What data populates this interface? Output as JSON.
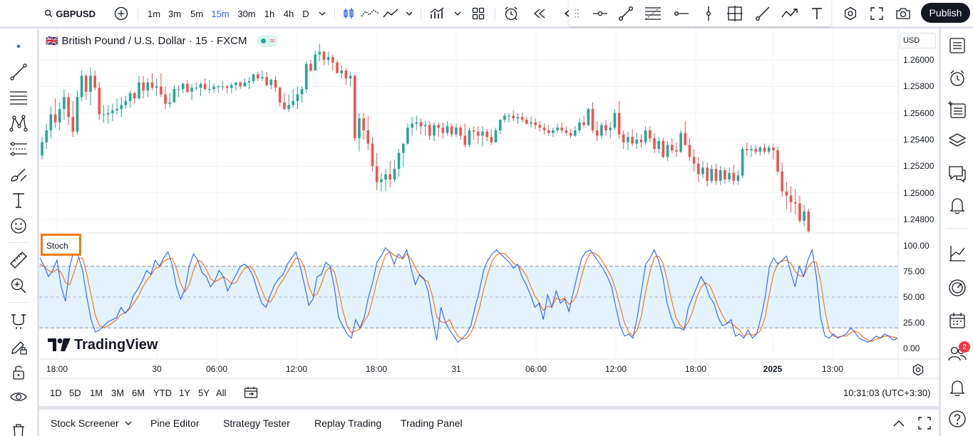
{
  "topbar": {
    "symbol": "GBPUSD",
    "intervals": [
      "1m",
      "3m",
      "5m",
      "15m",
      "30m",
      "1h",
      "4h",
      "D"
    ],
    "active_interval": "15m",
    "publish_label": "Publish"
  },
  "legend": {
    "title": "British Pound / U.S. Dollar · 15 · FXCM",
    "flag": "🇬🇧",
    "badge": "≈"
  },
  "currency_button": "USD",
  "indicator": {
    "label": "Stoch"
  },
  "watermark": "TradingView",
  "price_axis": [
    "1.26000",
    "1.25800",
    "1.25600",
    "1.25400",
    "1.25200",
    "1.25000",
    "1.24800"
  ],
  "stoch_axis": [
    "100.00",
    "75.00",
    "50.00",
    "25.00",
    "0.00"
  ],
  "time_axis": [
    {
      "label": "18:00",
      "bold": false
    },
    {
      "label": "30",
      "bold": false
    },
    {
      "label": "06:00",
      "bold": false
    },
    {
      "label": "12:00",
      "bold": false
    },
    {
      "label": "18:00",
      "bold": false
    },
    {
      "label": "31",
      "bold": false
    },
    {
      "label": "06:00",
      "bold": false
    },
    {
      "label": "12:00",
      "bold": false
    },
    {
      "label": "18:00",
      "bold": false
    },
    {
      "label": "2025",
      "bold": true
    },
    {
      "label": "13:00",
      "bold": false
    }
  ],
  "ranges": [
    "1D",
    "5D",
    "1M",
    "3M",
    "6M",
    "YTD",
    "1Y",
    "5Y",
    "All"
  ],
  "clock": "10:31:03 (UTC+3:30)",
  "bottom_tabs": [
    "Stock Screener",
    "Pine Editor",
    "Strategy Tester",
    "Replay Trading",
    "Trading Panel"
  ],
  "notification_count": "2",
  "colors": {
    "up": "#26a69a",
    "down": "#ef5350",
    "stoch_k": "#2962ff",
    "stoch_d": "#ff6d00",
    "band": "#e3f2fd",
    "highlight": "#f57c00"
  },
  "chart_data": {
    "type": "candlestick",
    "price_range": [
      1.247,
      1.2613
    ],
    "candles": [
      [
        1.2528,
        1.2542,
        1.2525,
        1.2538
      ],
      [
        1.2538,
        1.2552,
        1.2533,
        1.2547
      ],
      [
        1.2547,
        1.2565,
        1.2541,
        1.2559
      ],
      [
        1.2559,
        1.2571,
        1.2549,
        1.2553
      ],
      [
        1.2553,
        1.2568,
        1.2547,
        1.2563
      ],
      [
        1.2563,
        1.2578,
        1.2555,
        1.2572
      ],
      [
        1.2572,
        1.2575,
        1.2551,
        1.2557
      ],
      [
        1.2557,
        1.2569,
        1.2542,
        1.2546
      ],
      [
        1.2546,
        1.2577,
        1.2544,
        1.2572
      ],
      [
        1.2572,
        1.2592,
        1.2569,
        1.2588
      ],
      [
        1.2588,
        1.2589,
        1.257,
        1.2576
      ],
      [
        1.2576,
        1.2594,
        1.2566,
        1.2588
      ],
      [
        1.2588,
        1.2592,
        1.2577,
        1.2579
      ],
      [
        1.2579,
        1.2583,
        1.2555,
        1.2559
      ],
      [
        1.2559,
        1.2566,
        1.2553,
        1.2559
      ],
      [
        1.2559,
        1.2566,
        1.2552,
        1.256
      ],
      [
        1.256,
        1.2567,
        1.2554,
        1.2562
      ],
      [
        1.2562,
        1.2571,
        1.2559,
        1.2563
      ],
      [
        1.2563,
        1.2572,
        1.2557,
        1.2566
      ],
      [
        1.2566,
        1.2573,
        1.2563,
        1.2569
      ],
      [
        1.2569,
        1.2577,
        1.2564,
        1.2575
      ],
      [
        1.2575,
        1.2576,
        1.2567,
        1.2571
      ],
      [
        1.2571,
        1.2588,
        1.257,
        1.2583
      ],
      [
        1.2583,
        1.2588,
        1.2571,
        1.2577
      ],
      [
        1.2577,
        1.2586,
        1.2572,
        1.2583
      ],
      [
        1.2583,
        1.259,
        1.2577,
        1.2579
      ],
      [
        1.2579,
        1.2586,
        1.2573,
        1.258
      ],
      [
        1.258,
        1.259,
        1.2572,
        1.2574
      ],
      [
        1.2574,
        1.258,
        1.2563,
        1.2567
      ],
      [
        1.2567,
        1.2575,
        1.2564,
        1.2568
      ],
      [
        1.2568,
        1.2581,
        1.2568,
        1.2578
      ],
      [
        1.2578,
        1.2581,
        1.2572,
        1.2578
      ],
      [
        1.2578,
        1.2583,
        1.2575,
        1.2582
      ],
      [
        1.2582,
        1.2585,
        1.2575,
        1.2576
      ],
      [
        1.2576,
        1.2582,
        1.257,
        1.2579
      ],
      [
        1.2579,
        1.2583,
        1.2577,
        1.2579
      ],
      [
        1.2579,
        1.2583,
        1.2573,
        1.2582
      ],
      [
        1.2582,
        1.2586,
        1.2577,
        1.2578
      ],
      [
        1.2578,
        1.2585,
        1.2575,
        1.2578
      ],
      [
        1.2578,
        1.2582,
        1.2575,
        1.258
      ],
      [
        1.258,
        1.2581,
        1.2575,
        1.258
      ],
      [
        1.258,
        1.2584,
        1.2577,
        1.258
      ],
      [
        1.258,
        1.2581,
        1.2575,
        1.2579
      ],
      [
        1.2579,
        1.2583,
        1.2575,
        1.2581
      ],
      [
        1.2581,
        1.2583,
        1.2577,
        1.2583
      ],
      [
        1.2583,
        1.2584,
        1.2578,
        1.258
      ],
      [
        1.258,
        1.2586,
        1.258,
        1.2583
      ],
      [
        1.2583,
        1.2587,
        1.2578,
        1.2584
      ],
      [
        1.2584,
        1.259,
        1.2582,
        1.2589
      ],
      [
        1.2589,
        1.2591,
        1.2584,
        1.2586
      ],
      [
        1.2586,
        1.2592,
        1.2584,
        1.2587
      ],
      [
        1.2587,
        1.2591,
        1.258,
        1.2581
      ],
      [
        1.2581,
        1.2586,
        1.2578,
        1.2585
      ],
      [
        1.2585,
        1.2588,
        1.2576,
        1.2579
      ],
      [
        1.2579,
        1.258,
        1.2565,
        1.2568
      ],
      [
        1.2568,
        1.2575,
        1.2562,
        1.2563
      ],
      [
        1.2563,
        1.2574,
        1.2561,
        1.2566
      ],
      [
        1.2566,
        1.2578,
        1.2564,
        1.2569
      ],
      [
        1.2569,
        1.258,
        1.2563,
        1.2574
      ],
      [
        1.2574,
        1.258,
        1.2568,
        1.2578
      ],
      [
        1.2578,
        1.2599,
        1.2575,
        1.2597
      ],
      [
        1.2597,
        1.26,
        1.2591,
        1.2592
      ],
      [
        1.2592,
        1.2607,
        1.2592,
        1.2604
      ],
      [
        1.2604,
        1.2612,
        1.2599,
        1.2606
      ],
      [
        1.2606,
        1.2607,
        1.2596,
        1.26
      ],
      [
        1.26,
        1.2606,
        1.2596,
        1.2602
      ],
      [
        1.2602,
        1.2604,
        1.2592,
        1.2598
      ],
      [
        1.2598,
        1.26,
        1.259,
        1.259
      ],
      [
        1.259,
        1.2596,
        1.2586,
        1.2592
      ],
      [
        1.2592,
        1.2594,
        1.2581,
        1.2586
      ],
      [
        1.2586,
        1.2591,
        1.258,
        1.2588
      ],
      [
        1.2588,
        1.2589,
        1.2539,
        1.2541
      ],
      [
        1.2541,
        1.256,
        1.2531,
        1.2556
      ],
      [
        1.2556,
        1.256,
        1.254,
        1.2547
      ],
      [
        1.2547,
        1.2558,
        1.2532,
        1.2537
      ],
      [
        1.2537,
        1.2542,
        1.2516,
        1.252
      ],
      [
        1.252,
        1.253,
        1.2502,
        1.2508
      ],
      [
        1.2508,
        1.2515,
        1.2501,
        1.251
      ],
      [
        1.251,
        1.2518,
        1.2501,
        1.2514
      ],
      [
        1.2514,
        1.2524,
        1.2504,
        1.251
      ],
      [
        1.251,
        1.2525,
        1.2508,
        1.2518
      ],
      [
        1.2518,
        1.2533,
        1.2512,
        1.253
      ],
      [
        1.253,
        1.2537,
        1.252,
        1.2537
      ],
      [
        1.2537,
        1.2552,
        1.2536,
        1.2549
      ],
      [
        1.2549,
        1.2557,
        1.2543,
        1.2552
      ],
      [
        1.2552,
        1.2558,
        1.2547,
        1.2553
      ],
      [
        1.2553,
        1.2556,
        1.2544,
        1.255
      ],
      [
        1.255,
        1.2554,
        1.2543,
        1.2551
      ],
      [
        1.2551,
        1.2554,
        1.254,
        1.2543
      ],
      [
        1.2543,
        1.2553,
        1.2539,
        1.2551
      ],
      [
        1.2551,
        1.2553,
        1.2542,
        1.2549
      ],
      [
        1.2549,
        1.2553,
        1.2541,
        1.2545
      ],
      [
        1.2545,
        1.2554,
        1.2543,
        1.255
      ],
      [
        1.255,
        1.2552,
        1.2542,
        1.2544
      ],
      [
        1.2544,
        1.2552,
        1.2542,
        1.2549
      ],
      [
        1.2549,
        1.2551,
        1.254,
        1.2543
      ],
      [
        1.2543,
        1.2552,
        1.2534,
        1.2536
      ],
      [
        1.2536,
        1.2549,
        1.2534,
        1.2547
      ],
      [
        1.2547,
        1.255,
        1.254,
        1.2546
      ],
      [
        1.2546,
        1.255,
        1.2537,
        1.2543
      ],
      [
        1.2543,
        1.255,
        1.2535,
        1.2546
      ],
      [
        1.2546,
        1.2548,
        1.2539,
        1.2542
      ],
      [
        1.2542,
        1.2548,
        1.2536,
        1.2538
      ],
      [
        1.2538,
        1.2549,
        1.2538,
        1.2547
      ],
      [
        1.2547,
        1.2555,
        1.2544,
        1.2555
      ],
      [
        1.2555,
        1.256,
        1.2553,
        1.2558
      ],
      [
        1.2558,
        1.256,
        1.2553,
        1.2558
      ],
      [
        1.2558,
        1.2562,
        1.2554,
        1.2556
      ],
      [
        1.2556,
        1.256,
        1.2552,
        1.2557
      ],
      [
        1.2557,
        1.256,
        1.2553,
        1.2555
      ],
      [
        1.2555,
        1.2557,
        1.2551,
        1.2552
      ],
      [
        1.2552,
        1.2557,
        1.2549,
        1.2553
      ],
      [
        1.2553,
        1.2556,
        1.2548,
        1.2551
      ],
      [
        1.2551,
        1.2554,
        1.2546,
        1.2549
      ],
      [
        1.2549,
        1.2552,
        1.2544,
        1.2547
      ],
      [
        1.2547,
        1.2551,
        1.2543,
        1.2545
      ],
      [
        1.2545,
        1.2549,
        1.2542,
        1.2547
      ],
      [
        1.2547,
        1.2552,
        1.2545,
        1.2549
      ],
      [
        1.2549,
        1.2553,
        1.2545,
        1.2547
      ],
      [
        1.2547,
        1.255,
        1.2543,
        1.2545
      ],
      [
        1.2545,
        1.2548,
        1.2541,
        1.2543
      ],
      [
        1.2543,
        1.255,
        1.2542,
        1.2547
      ],
      [
        1.2547,
        1.2556,
        1.2545,
        1.2553
      ],
      [
        1.2553,
        1.2558,
        1.2549,
        1.2551
      ],
      [
        1.2551,
        1.2564,
        1.255,
        1.2563
      ],
      [
        1.2563,
        1.2568,
        1.2545,
        1.2547
      ],
      [
        1.2547,
        1.2554,
        1.2539,
        1.2543
      ],
      [
        1.2543,
        1.2553,
        1.2541,
        1.2551
      ],
      [
        1.2551,
        1.2555,
        1.2543,
        1.2547
      ],
      [
        1.2547,
        1.2553,
        1.2541,
        1.2549
      ],
      [
        1.2549,
        1.2563,
        1.2547,
        1.256
      ],
      [
        1.256,
        1.2569,
        1.2541,
        1.2544
      ],
      [
        1.2544,
        1.2547,
        1.2533,
        1.2538
      ],
      [
        1.2538,
        1.2546,
        1.2532,
        1.2542
      ],
      [
        1.2542,
        1.2548,
        1.2535,
        1.2537
      ],
      [
        1.2537,
        1.2545,
        1.2533,
        1.254
      ],
      [
        1.254,
        1.2544,
        1.2534,
        1.2538
      ],
      [
        1.2538,
        1.255,
        1.2536,
        1.2547
      ],
      [
        1.2547,
        1.255,
        1.2538,
        1.2541
      ],
      [
        1.2541,
        1.2545,
        1.253,
        1.2533
      ],
      [
        1.2533,
        1.2542,
        1.253,
        1.2539
      ],
      [
        1.2539,
        1.2541,
        1.2526,
        1.2527
      ],
      [
        1.2527,
        1.2539,
        1.2524,
        1.2536
      ],
      [
        1.2536,
        1.2541,
        1.253,
        1.2532
      ],
      [
        1.2532,
        1.2538,
        1.2527,
        1.2531
      ],
      [
        1.2531,
        1.2547,
        1.253,
        1.2545
      ],
      [
        1.2545,
        1.2554,
        1.2535,
        1.2536
      ],
      [
        1.2536,
        1.2541,
        1.2524,
        1.2527
      ],
      [
        1.2527,
        1.2533,
        1.2516,
        1.2522
      ],
      [
        1.2522,
        1.2527,
        1.2508,
        1.2514
      ],
      [
        1.2514,
        1.2524,
        1.2511,
        1.2519
      ],
      [
        1.2519,
        1.2523,
        1.2505,
        1.2509
      ],
      [
        1.2509,
        1.2521,
        1.2507,
        1.2518
      ],
      [
        1.2518,
        1.2522,
        1.2506,
        1.2509
      ],
      [
        1.2509,
        1.252,
        1.2506,
        1.2517
      ],
      [
        1.2517,
        1.2519,
        1.2507,
        1.251
      ],
      [
        1.251,
        1.2519,
        1.2508,
        1.2515
      ],
      [
        1.2515,
        1.2521,
        1.2506,
        1.2509
      ],
      [
        1.2509,
        1.2517,
        1.2506,
        1.2513
      ],
      [
        1.2513,
        1.2535,
        1.2511,
        1.2533
      ],
      [
        1.2533,
        1.2538,
        1.2528,
        1.2532
      ],
      [
        1.2532,
        1.2536,
        1.2527,
        1.2533
      ],
      [
        1.2533,
        1.2536,
        1.2529,
        1.2531
      ],
      [
        1.2531,
        1.2535,
        1.2528,
        1.2534
      ],
      [
        1.2534,
        1.2537,
        1.2529,
        1.2531
      ],
      [
        1.2531,
        1.2536,
        1.2529,
        1.2534
      ],
      [
        1.2534,
        1.2537,
        1.2525,
        1.2532
      ],
      [
        1.2532,
        1.2535,
        1.2514,
        1.2516
      ],
      [
        1.2516,
        1.2523,
        1.2497,
        1.2501
      ],
      [
        1.2501,
        1.2508,
        1.2488,
        1.2498
      ],
      [
        1.2498,
        1.2505,
        1.2485,
        1.2493
      ],
      [
        1.2493,
        1.2503,
        1.2484,
        1.2492
      ],
      [
        1.2492,
        1.2498,
        1.2477,
        1.2479
      ],
      [
        1.2479,
        1.2491,
        1.2475,
        1.2486
      ],
      [
        1.2486,
        1.2488,
        1.247,
        1.2471
      ]
    ],
    "stoch_k": [
      88,
      80,
      70,
      76,
      86,
      60,
      46,
      80,
      96,
      90,
      76,
      50,
      28,
      16,
      18,
      22,
      26,
      28,
      30,
      40,
      34,
      40,
      52,
      58,
      66,
      76,
      72,
      86,
      80,
      88,
      94,
      82,
      60,
      48,
      58,
      80,
      92,
      86,
      74,
      70,
      60,
      66,
      76,
      70,
      56,
      64,
      72,
      80,
      82,
      78,
      70,
      56,
      44,
      40,
      52,
      62,
      68,
      72,
      82,
      88,
      94,
      80,
      62,
      42,
      48,
      70,
      72,
      84,
      80,
      60,
      30,
      22,
      14,
      10,
      28,
      20,
      30,
      50,
      64,
      84,
      90,
      98,
      94,
      82,
      92,
      88,
      96,
      78,
      62,
      72,
      68,
      56,
      30,
      8,
      40,
      26,
      18,
      12,
      6,
      10,
      14,
      22,
      40,
      56,
      76,
      86,
      92,
      96,
      92,
      88,
      84,
      78,
      82,
      70,
      62,
      52,
      40,
      44,
      28,
      52,
      40,
      56,
      44,
      48,
      36,
      54,
      72,
      88,
      94,
      96,
      90,
      84,
      78,
      70,
      60,
      40,
      22,
      12,
      14,
      10,
      30,
      56,
      82,
      88,
      96,
      86,
      70,
      44,
      30,
      20,
      20,
      18,
      40,
      50,
      60,
      70,
      62,
      50,
      44,
      30,
      22,
      24,
      28,
      12,
      14,
      10,
      18,
      10,
      14,
      30,
      50,
      80,
      88,
      82,
      86,
      90,
      74,
      60,
      80,
      70,
      86,
      96,
      70,
      30,
      12,
      10,
      14,
      10,
      12,
      14,
      20,
      16,
      10,
      8,
      6,
      8,
      12,
      10,
      14,
      12,
      8,
      10
    ],
    "stoch_d": [
      82,
      80,
      76,
      74,
      77,
      74,
      64,
      62,
      74,
      88,
      88,
      72,
      52,
      32,
      22,
      20,
      22,
      25,
      28,
      33,
      35,
      38,
      44,
      50,
      59,
      66,
      71,
      78,
      79,
      85,
      87,
      88,
      78,
      63,
      55,
      62,
      76,
      86,
      84,
      77,
      68,
      65,
      67,
      70,
      67,
      63,
      64,
      72,
      78,
      80,
      77,
      68,
      57,
      47,
      45,
      52,
      61,
      67,
      74,
      81,
      88,
      87,
      79,
      61,
      51,
      53,
      63,
      75,
      79,
      75,
      57,
      37,
      22,
      15,
      17,
      19,
      26,
      33,
      48,
      66,
      79,
      91,
      94,
      91,
      89,
      87,
      92,
      87,
      79,
      71,
      67,
      65,
      51,
      31,
      26,
      25,
      28,
      19,
      12,
      9,
      10,
      15,
      25,
      39,
      57,
      73,
      85,
      91,
      93,
      92,
      88,
      83,
      81,
      77,
      71,
      61,
      51,
      45,
      37,
      41,
      40,
      49,
      47,
      49,
      43,
      46,
      54,
      71,
      85,
      93,
      93,
      90,
      84,
      77,
      69,
      57,
      41,
      25,
      16,
      12,
      18,
      32,
      56,
      75,
      89,
      90,
      84,
      67,
      48,
      31,
      23,
      19,
      26,
      36,
      50,
      60,
      64,
      61,
      52,
      41,
      32,
      25,
      25,
      21,
      18,
      12,
      14,
      13,
      14,
      18,
      31,
      53,
      73,
      83,
      85,
      86,
      83,
      75,
      71,
      70,
      79,
      84,
      84,
      65,
      37,
      17,
      12,
      11,
      12,
      12,
      15,
      17,
      15,
      11,
      8,
      7,
      9,
      10,
      12,
      12,
      11,
      10
    ]
  }
}
